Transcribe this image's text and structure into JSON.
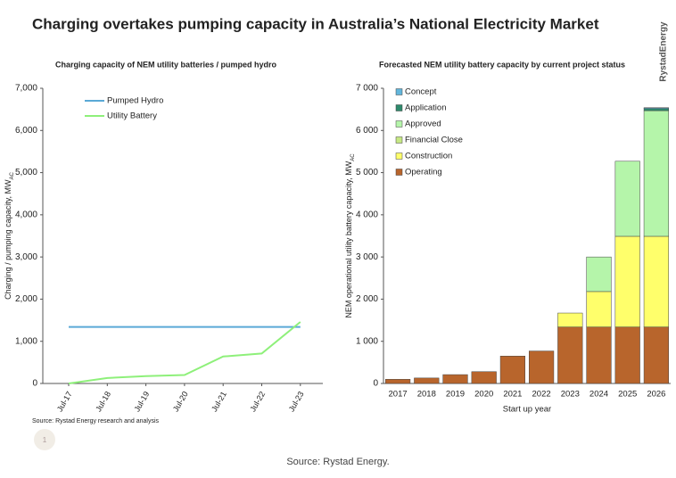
{
  "title": "Charging overtakes pumping capacity in Australia’s National Electricity Market",
  "logo": "RystadEnergy",
  "left_source": "Source: Rystad Energy research and analysis",
  "badge": "1",
  "caption": "Source: Rystad Energy.",
  "chart_data": [
    {
      "type": "line",
      "title": "Charging capacity of NEM utility batteries / pumped hydro",
      "y_label": "Charging / pumping capacity, MW",
      "y_label_sub": "AC",
      "categories": [
        "Jul-17",
        "Jul-18",
        "Jul-19",
        "Jul-20",
        "Jul-21",
        "Jul-22",
        "Jul-23"
      ],
      "series": [
        {
          "name": "Pumped Hydro",
          "color": "#5aa9d6",
          "values": [
            1340,
            1340,
            1340,
            1340,
            1340,
            1340,
            1340
          ]
        },
        {
          "name": "Utility Battery",
          "color": "#8ef07a",
          "values": [
            0,
            130,
            175,
            200,
            640,
            710,
            1460
          ]
        }
      ],
      "ylim": [
        0,
        7000
      ],
      "yticks": [
        0,
        {
          "value": 1000,
          "label": "1,000"
        },
        {
          "value": 2000,
          "label": "2,000"
        },
        {
          "value": 3000,
          "label": "3,000"
        },
        {
          "value": 4000,
          "label": "4,000"
        },
        {
          "value": 5000,
          "label": "5,000"
        },
        {
          "value": 6000,
          "label": "6,000"
        },
        {
          "value": 7000,
          "label": "7,000"
        }
      ],
      "legend": "upper left"
    },
    {
      "type": "stacked_bar",
      "title": "Forecasted NEM utility battery capacity by current project status",
      "y_label": "NEM operational utility battery capacity, MW",
      "y_label_sub": "AC",
      "x_label": "Start up year",
      "categories": [
        "2017",
        "2018",
        "2019",
        "2020",
        "2021",
        "2022",
        "2023",
        "2024",
        "2025",
        "2026"
      ],
      "series": [
        {
          "name": "Operating",
          "color": "#b8652c",
          "values": [
            100,
            130,
            210,
            280,
            650,
            770,
            1340,
            1340,
            1340,
            1340
          ]
        },
        {
          "name": "Construction",
          "color": "#ffff6b",
          "values": [
            0,
            0,
            0,
            0,
            0,
            0,
            330,
            840,
            2150,
            2150
          ]
        },
        {
          "name": "Financial Close",
          "color": "#c6e884",
          "values": [
            0,
            0,
            0,
            0,
            0,
            0,
            0,
            0,
            0,
            0
          ]
        },
        {
          "name": "Approved",
          "color": "#b5f5aa",
          "values": [
            0,
            0,
            0,
            0,
            0,
            0,
            0,
            820,
            1780,
            2980
          ]
        },
        {
          "name": "Application",
          "color": "#2e8a6c",
          "values": [
            0,
            0,
            0,
            0,
            0,
            0,
            0,
            0,
            0,
            50
          ]
        },
        {
          "name": "Concept",
          "color": "#62b6dc",
          "values": [
            0,
            0,
            0,
            0,
            0,
            0,
            0,
            0,
            0,
            20
          ]
        }
      ],
      "ylim": [
        0,
        7000
      ],
      "yticks": [
        0,
        {
          "value": 1000,
          "label": "1 000"
        },
        {
          "value": 2000,
          "label": "2 000"
        },
        {
          "value": 3000,
          "label": "3 000"
        },
        {
          "value": 4000,
          "label": "4 000"
        },
        {
          "value": 5000,
          "label": "5 000"
        },
        {
          "value": 6000,
          "label": "6 000"
        },
        {
          "value": 7000,
          "label": "7 000"
        }
      ],
      "legend": "upper left"
    }
  ]
}
